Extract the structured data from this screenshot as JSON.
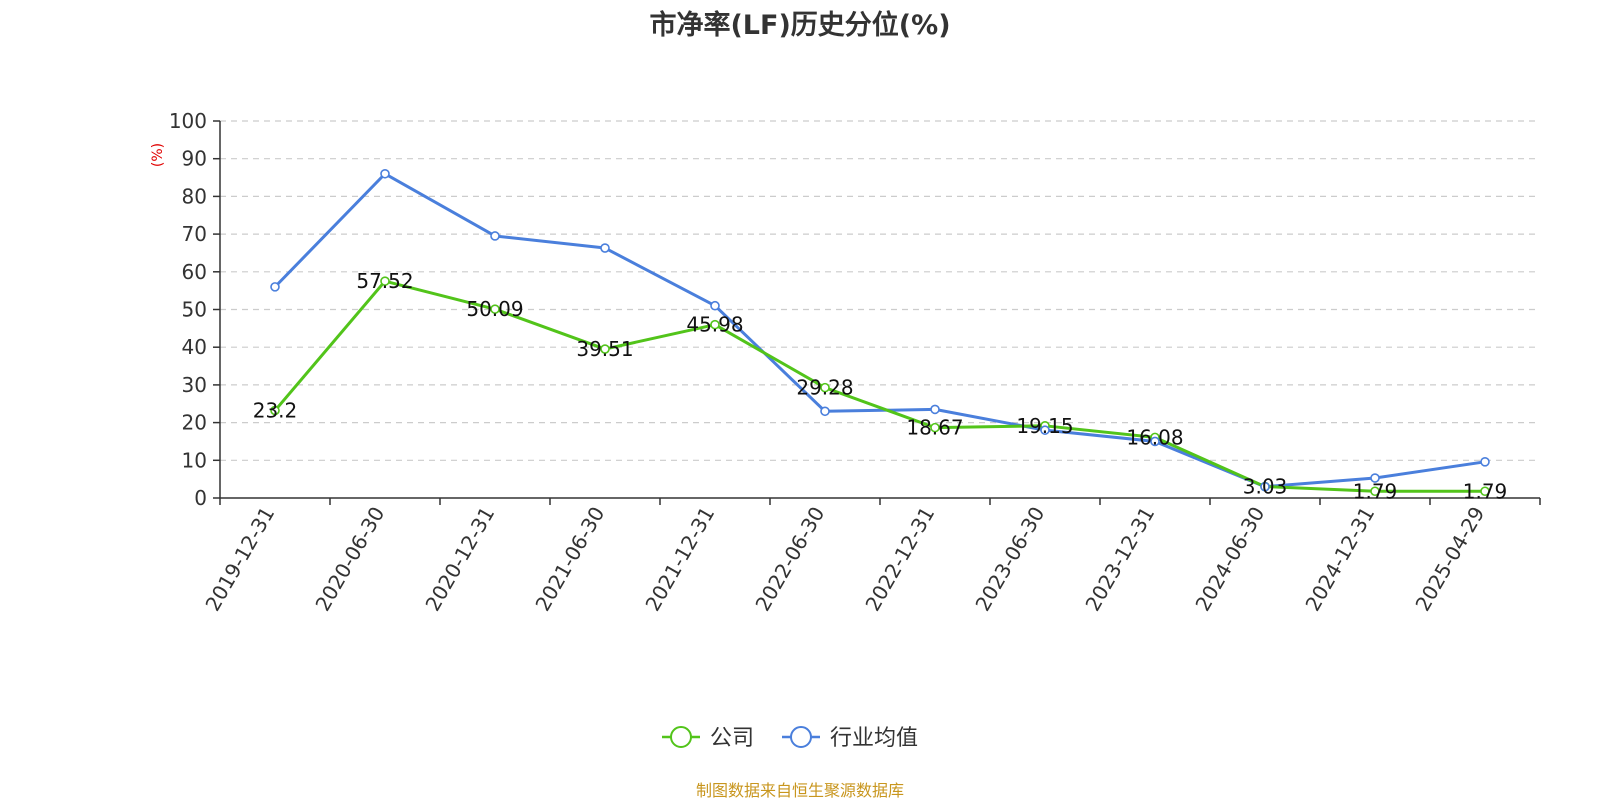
{
  "chart_data": {
    "type": "line",
    "title": "市净率(LF)历史分位(%)",
    "ylabel": "(%)",
    "ylim": [
      0,
      100
    ],
    "yticks": [
      "0",
      "10",
      "20",
      "30",
      "40",
      "50",
      "60",
      "70",
      "80",
      "90",
      "100"
    ],
    "categories": [
      "2019-12-31",
      "2020-06-30",
      "2020-12-31",
      "2021-06-30",
      "2021-12-31",
      "2022-06-30",
      "2022-12-31",
      "2023-06-30",
      "2023-12-31",
      "2024-06-30",
      "2024-12-31",
      "2025-04-29"
    ],
    "grid": true,
    "legend_position": "bottom",
    "series": [
      {
        "name": "公司",
        "color": "#52c41a",
        "values": [
          23.2,
          57.52,
          50.09,
          39.51,
          45.98,
          29.28,
          18.67,
          19.15,
          16.08,
          3.03,
          1.79,
          1.79
        ],
        "labels": [
          "23.2",
          "57.52",
          "50.09",
          "39.51",
          "45.98",
          "29.28",
          "18.67",
          "19.15",
          "16.08",
          "3.03",
          "1.79",
          "1.79"
        ]
      },
      {
        "name": "行业均值",
        "color": "#4a7fdc",
        "values": [
          56,
          86,
          69.5,
          66.3,
          51,
          23,
          23.5,
          18,
          15,
          3,
          5.3,
          9.6
        ]
      }
    ],
    "source": "制图数据来自恒生聚源数据库",
    "source_color": "#c8961e",
    "ylabel_color": "#e00000"
  }
}
